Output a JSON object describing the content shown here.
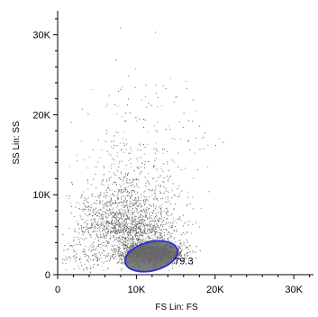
{
  "chart_data": {
    "type": "scatter",
    "title": "",
    "xlabel": "FS Lin: FS",
    "ylabel": "SS Lin: SS",
    "xlim": [
      0,
      32500
    ],
    "ylim": [
      0,
      33000
    ],
    "x_ticks": [
      {
        "value": 0,
        "label": "0"
      },
      {
        "value": 10000,
        "label": "10K"
      },
      {
        "value": 20000,
        "label": "20K"
      },
      {
        "value": 30000,
        "label": "30K"
      }
    ],
    "y_ticks": [
      {
        "value": 0,
        "label": "0"
      },
      {
        "value": 10000,
        "label": "10K"
      },
      {
        "value": 20000,
        "label": "20K"
      },
      {
        "value": 30000,
        "label": "30K"
      }
    ],
    "grid": false,
    "point_color": "#555555",
    "gate_color": "#2a2ad4",
    "gate_fill": "#666666",
    "gate": {
      "label": "79.3",
      "center": [
        11900,
        2300
      ],
      "radius_x": 3400,
      "radius_y": 1800,
      "angle_deg": -14
    },
    "series": [
      {
        "description_of_populations": "",
        "clusters": [
          {
            "center": [
              11800,
              2300
            ],
            "spread": [
              1900,
              900
            ],
            "weight": 0.52
          },
          {
            "center": [
              9000,
              5200
            ],
            "spread": [
              3200,
              2300
            ],
            "weight": 0.3
          },
          {
            "center": [
              8500,
              8500
            ],
            "spread": [
              2900,
              3300
            ],
            "weight": 0.1
          },
          {
            "center": [
              12000,
              15000
            ],
            "spread": [
              4000,
              5000
            ],
            "weight": 0.04
          },
          {
            "center": [
              4000,
              1500
            ],
            "spread": [
              2500,
              1500
            ],
            "weight": 0.04
          }
        ],
        "n_points": 4200
      }
    ]
  }
}
